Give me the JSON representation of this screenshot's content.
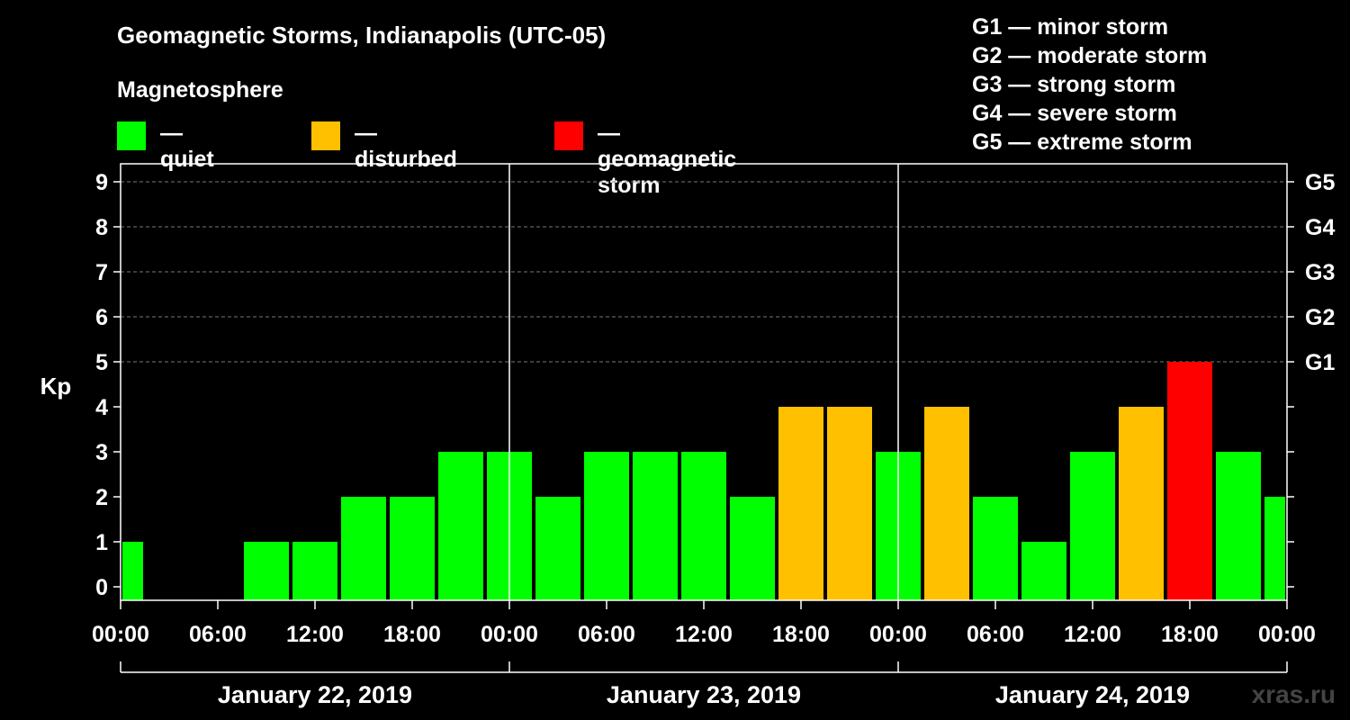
{
  "header": {
    "title": "Geomagnetic Storms, Indianapolis (UTC-05)",
    "subtitle": "Magnetosphere"
  },
  "legend": [
    {
      "label": "— quiet",
      "color": "#00ff00"
    },
    {
      "label": "— disturbed",
      "color": "#ffc000"
    },
    {
      "label": "— geomagnetic storm",
      "color": "#ff0000"
    }
  ],
  "storm_levels": [
    "G1 — minor storm",
    "G2 — moderate storm",
    "G3 — strong storm",
    "G4 — severe storm",
    "G5 — extreme storm"
  ],
  "watermark": "xras.ru",
  "chart_data": {
    "type": "bar",
    "ylabel": "Kp",
    "ylim": [
      0,
      9
    ],
    "yticks": [
      "0",
      "1",
      "2",
      "3",
      "4",
      "5",
      "6",
      "7",
      "8",
      "9"
    ],
    "right_ticks": [
      {
        "label": "G1",
        "kp": 5
      },
      {
        "label": "G2",
        "kp": 6
      },
      {
        "label": "G3",
        "kp": 7
      },
      {
        "label": "G4",
        "kp": 8
      },
      {
        "label": "G5",
        "kp": 9
      }
    ],
    "xticks": [
      "00:00",
      "06:00",
      "12:00",
      "18:00",
      "00:00",
      "06:00",
      "12:00",
      "18:00",
      "00:00",
      "06:00",
      "12:00",
      "18:00",
      "00:00"
    ],
    "days": [
      "January 22, 2019",
      "January 23, 2019",
      "January 24, 2019"
    ],
    "grid": "dashed horizontal at Kp 5-9",
    "colors": {
      "quiet": "#00ff00",
      "disturbed": "#ffc000",
      "storm": "#ff0000"
    },
    "interval_hours": 3,
    "first_bar_partial": true,
    "values": [
      1,
      0,
      0,
      1,
      1,
      2,
      2,
      3,
      3,
      2,
      3,
      3,
      3,
      2,
      4,
      4,
      3,
      4,
      2,
      1,
      3,
      4,
      5,
      3,
      2
    ]
  }
}
